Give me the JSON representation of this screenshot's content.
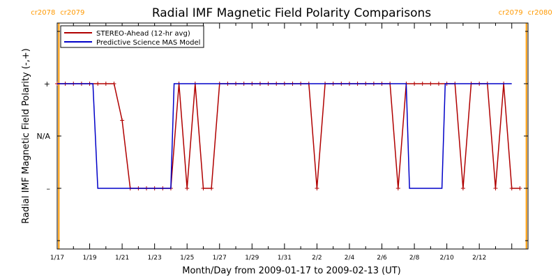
{
  "chart_data": {
    "type": "line",
    "title": "Radial IMF Magnetic Field Polarity Comparisons",
    "xlabel": "Month/Day from 2009-01-17 to 2009-02-13 (UT)",
    "ylabel": "Radial IMF Magnetic Field Polarity (-,+)",
    "x_unit": "day of 2009 (UT)",
    "xlim": [
      17,
      45
    ],
    "ylim": [
      -2,
      2
    ],
    "y_ticks": [
      {
        "value": 1,
        "label": "+"
      },
      {
        "value": 0,
        "label": "N/A"
      },
      {
        "value": -1,
        "label": "–"
      }
    ],
    "x_tick_labels": [
      {
        "value": 17,
        "label": "1/17"
      },
      {
        "value": 19,
        "label": "1/19"
      },
      {
        "value": 21,
        "label": "1/21"
      },
      {
        "value": 23,
        "label": "1/23"
      },
      {
        "value": 25,
        "label": "1/25"
      },
      {
        "value": 27,
        "label": "1/27"
      },
      {
        "value": 29,
        "label": "1/29"
      },
      {
        "value": 31,
        "label": "1/31"
      },
      {
        "value": 33,
        "label": "2/2"
      },
      {
        "value": 35,
        "label": "2/4"
      },
      {
        "value": 37,
        "label": "2/6"
      },
      {
        "value": 39,
        "label": "2/8"
      },
      {
        "value": 41,
        "label": "2/10"
      },
      {
        "value": 43,
        "label": "2/12"
      }
    ],
    "grid": false,
    "legend_position": "top-left",
    "series": [
      {
        "name": "STEREO-Ahead (12-hr avg)",
        "color": "#b00000",
        "marker": "plus",
        "points": [
          [
            17.0,
            1
          ],
          [
            17.5,
            1
          ],
          [
            18.0,
            1
          ],
          [
            18.5,
            1
          ],
          [
            19.0,
            1
          ],
          [
            19.5,
            1
          ],
          [
            20.0,
            1
          ],
          [
            20.5,
            1
          ],
          [
            21.0,
            0.3
          ],
          [
            21.5,
            -1
          ],
          [
            22.0,
            -1
          ],
          [
            22.5,
            -1
          ],
          [
            23.0,
            -1
          ],
          [
            23.5,
            -1
          ],
          [
            24.0,
            -1
          ],
          [
            24.5,
            1
          ],
          [
            25.0,
            -1
          ],
          [
            25.5,
            1
          ],
          [
            26.0,
            -1
          ],
          [
            26.5,
            -1
          ],
          [
            27.0,
            1
          ],
          [
            27.5,
            1
          ],
          [
            28.0,
            1
          ],
          [
            28.5,
            1
          ],
          [
            29.0,
            1
          ],
          [
            29.5,
            1
          ],
          [
            30.0,
            1
          ],
          [
            30.5,
            1
          ],
          [
            31.0,
            1
          ],
          [
            31.5,
            1
          ],
          [
            32.0,
            1
          ],
          [
            32.5,
            1
          ],
          [
            33.0,
            -1
          ],
          [
            33.5,
            1
          ],
          [
            34.0,
            1
          ],
          [
            34.5,
            1
          ],
          [
            35.0,
            1
          ],
          [
            35.5,
            1
          ],
          [
            36.0,
            1
          ],
          [
            36.5,
            1
          ],
          [
            37.0,
            1
          ],
          [
            37.5,
            1
          ],
          [
            38.0,
            -1
          ],
          [
            38.5,
            1
          ],
          [
            39.0,
            1
          ],
          [
            39.5,
            1
          ],
          [
            40.0,
            1
          ],
          [
            40.5,
            1
          ],
          [
            41.0,
            1
          ],
          [
            41.5,
            1
          ],
          [
            42.0,
            -1
          ],
          [
            42.5,
            1
          ],
          [
            43.0,
            1
          ],
          [
            43.5,
            1
          ],
          [
            44.0,
            -1
          ],
          [
            44.5,
            1
          ],
          [
            45.0,
            -1
          ],
          [
            45.5,
            -1
          ]
        ]
      },
      {
        "name": "Predictive Science MAS Model",
        "color": "#0000c8",
        "marker": "none",
        "points": [
          [
            17.0,
            1
          ],
          [
            19.2,
            1
          ],
          [
            19.5,
            -1
          ],
          [
            24.0,
            -1
          ],
          [
            24.2,
            1
          ],
          [
            38.5,
            1
          ],
          [
            38.7,
            -1
          ],
          [
            40.7,
            -1
          ],
          [
            40.9,
            1
          ],
          [
            45.0,
            1
          ]
        ]
      }
    ],
    "carrington_markers": [
      {
        "x": 17.1,
        "label_left": "cr2078",
        "label_right": "cr2079",
        "color": "#ff9900"
      },
      {
        "x": 45.9,
        "label_left": "cr2079",
        "label_right": "cr2080",
        "color": "#ff9900"
      }
    ]
  }
}
